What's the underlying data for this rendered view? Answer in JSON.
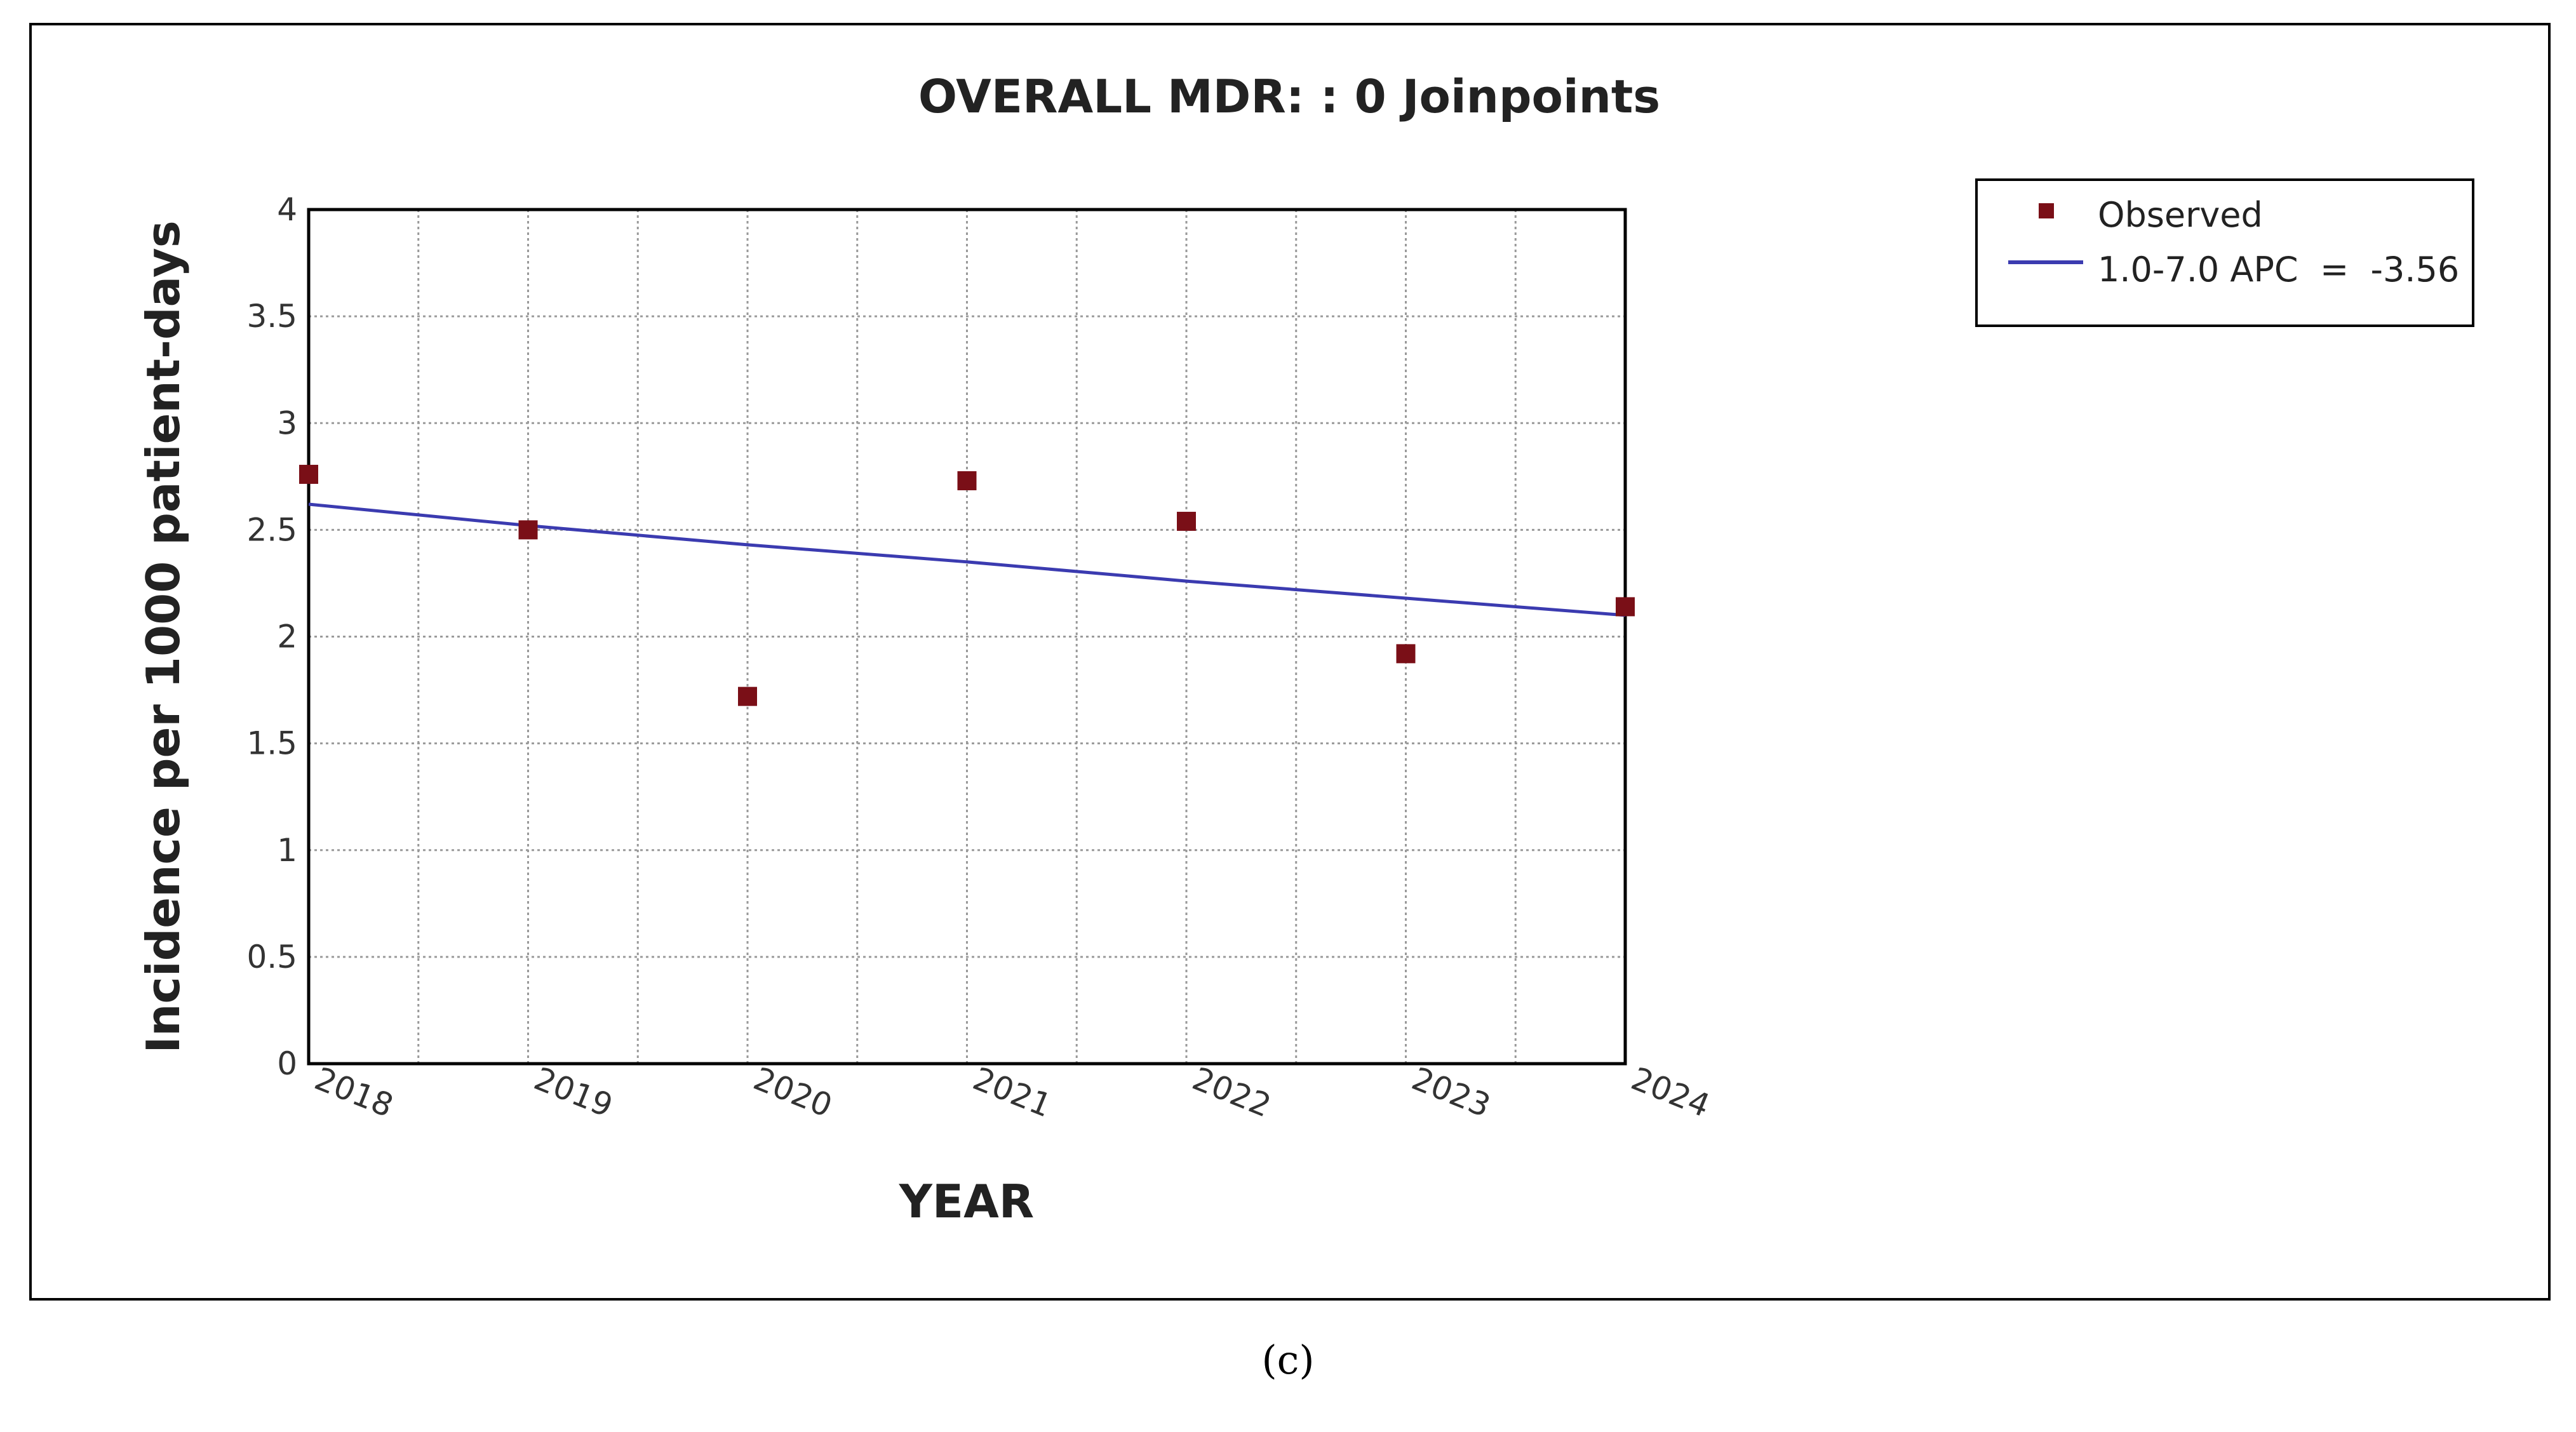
{
  "panel_label": "(c)",
  "chart_data": {
    "type": "scatter",
    "title": "OVERALL  MDR: : 0 Joinpoints",
    "xlabel": "YEAR",
    "ylabel": "Incidence per 1000 patient-days",
    "xlim": [
      2018,
      2024
    ],
    "ylim": [
      0,
      4
    ],
    "x_ticks": [
      "2018",
      "2019",
      "2020",
      "2021",
      "2022",
      "2023",
      "2024"
    ],
    "y_ticks": [
      "0",
      "0.5",
      "1",
      "1.5",
      "2",
      "2.5",
      "3",
      "3.5",
      "4"
    ],
    "grid": true,
    "legend_placement": "top-right, outside plot",
    "series": [
      {
        "name": "Observed",
        "kind": "markers",
        "color": "#7a0f17",
        "x": [
          2018,
          2019,
          2020,
          2021,
          2022,
          2023,
          2024
        ],
        "y": [
          2.76,
          2.5,
          1.72,
          2.73,
          2.54,
          1.92,
          2.14
        ]
      },
      {
        "name": "1.0-7.0 APC  =  -3.56",
        "kind": "line",
        "color": "#3b3bb0",
        "x": [
          2018,
          2019,
          2020,
          2021,
          2022,
          2023,
          2024
        ],
        "y": [
          2.62,
          2.52,
          2.43,
          2.35,
          2.26,
          2.18,
          2.1
        ]
      }
    ]
  }
}
